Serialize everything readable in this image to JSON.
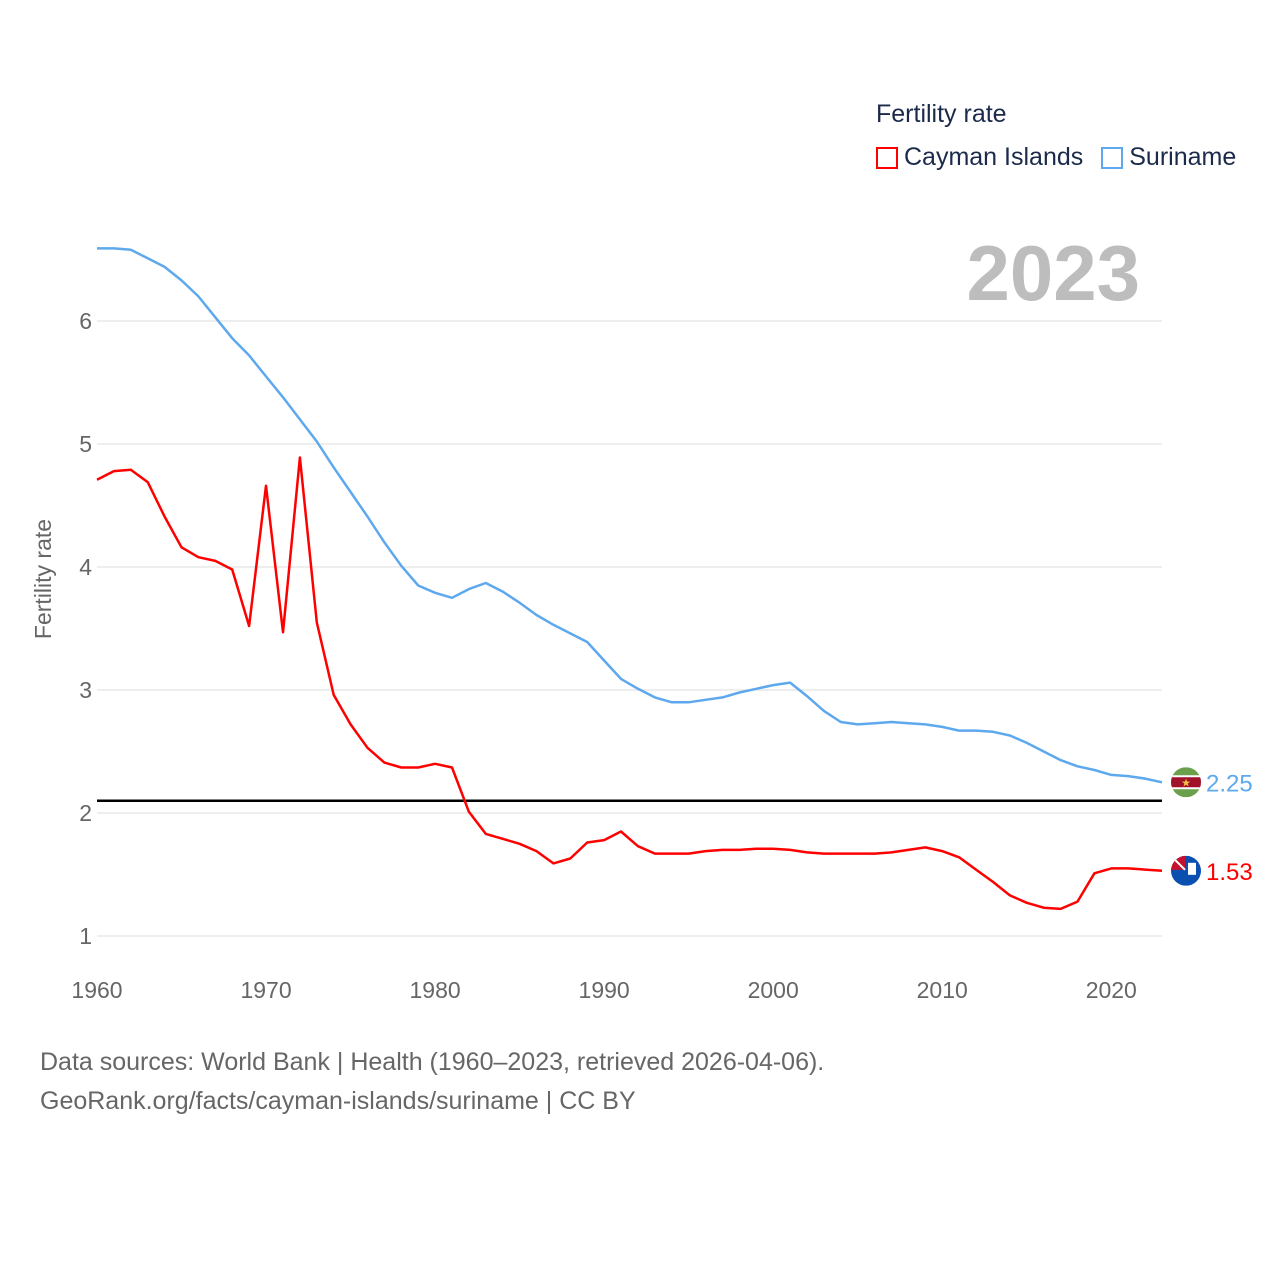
{
  "chart_data": {
    "type": "line",
    "title": "",
    "legend_title": "Fertility rate",
    "legend_placement": "top-right",
    "ylabel": "Fertility rate",
    "xlabel": "",
    "xlim": [
      1960,
      2023
    ],
    "ylim": [
      0.77,
      6.6
    ],
    "x_ticks": [
      1960,
      1970,
      1980,
      1990,
      2000,
      2010,
      2020
    ],
    "y_ticks": [
      1,
      2,
      3,
      4,
      5,
      6
    ],
    "grid": true,
    "current_year": "2023",
    "reference_line": 2.1,
    "x": [
      1960,
      1961,
      1962,
      1963,
      1964,
      1965,
      1966,
      1967,
      1968,
      1969,
      1970,
      1971,
      1972,
      1973,
      1974,
      1975,
      1976,
      1977,
      1978,
      1979,
      1980,
      1981,
      1982,
      1983,
      1984,
      1985,
      1986,
      1987,
      1988,
      1989,
      1990,
      1991,
      1992,
      1993,
      1994,
      1995,
      1996,
      1997,
      1998,
      1999,
      2000,
      2001,
      2002,
      2003,
      2004,
      2005,
      2006,
      2007,
      2008,
      2009,
      2010,
      2011,
      2012,
      2013,
      2014,
      2015,
      2016,
      2017,
      2018,
      2019,
      2020,
      2021,
      2022,
      2023
    ],
    "series": [
      {
        "name": "Cayman Islands",
        "color": "#ff0000",
        "end_label": "1.53",
        "flag": "cayman-islands-flag",
        "values": [
          4.71,
          4.78,
          4.79,
          4.69,
          4.41,
          4.16,
          4.08,
          4.05,
          3.98,
          3.52,
          4.66,
          3.47,
          4.89,
          3.55,
          2.96,
          2.72,
          2.53,
          2.41,
          2.37,
          2.37,
          2.4,
          2.37,
          2.01,
          1.83,
          1.79,
          1.75,
          1.69,
          1.59,
          1.63,
          1.76,
          1.78,
          1.85,
          1.73,
          1.67,
          1.67,
          1.67,
          1.69,
          1.7,
          1.7,
          1.71,
          1.71,
          1.7,
          1.68,
          1.67,
          1.67,
          1.67,
          1.67,
          1.68,
          1.7,
          1.72,
          1.69,
          1.64,
          1.54,
          1.44,
          1.33,
          1.27,
          1.23,
          1.22,
          1.28,
          1.51,
          1.55,
          1.55,
          1.54,
          1.53
        ]
      },
      {
        "name": "Suriname",
        "color": "#5ea8ee",
        "end_label": "2.25",
        "flag": "suriname-flag",
        "values": [
          6.59,
          6.59,
          6.58,
          6.51,
          6.44,
          6.33,
          6.2,
          6.03,
          5.86,
          5.72,
          5.55,
          5.38,
          5.2,
          5.02,
          4.81,
          4.61,
          4.41,
          4.2,
          4.01,
          3.85,
          3.79,
          3.75,
          3.82,
          3.87,
          3.8,
          3.71,
          3.61,
          3.53,
          3.46,
          3.39,
          3.24,
          3.09,
          3.01,
          2.94,
          2.9,
          2.9,
          2.92,
          2.94,
          2.98,
          3.01,
          3.04,
          3.06,
          2.95,
          2.83,
          2.74,
          2.72,
          2.73,
          2.74,
          2.73,
          2.72,
          2.7,
          2.67,
          2.67,
          2.66,
          2.63,
          2.57,
          2.5,
          2.43,
          2.38,
          2.35,
          2.31,
          2.3,
          2.28,
          2.25
        ]
      }
    ]
  },
  "footer": {
    "line1": "Data sources: World Bank | Health (1960–2023, retrieved 2026-04-06).",
    "line2": "GeoRank.org/facts/cayman-islands/suriname | CC BY"
  }
}
